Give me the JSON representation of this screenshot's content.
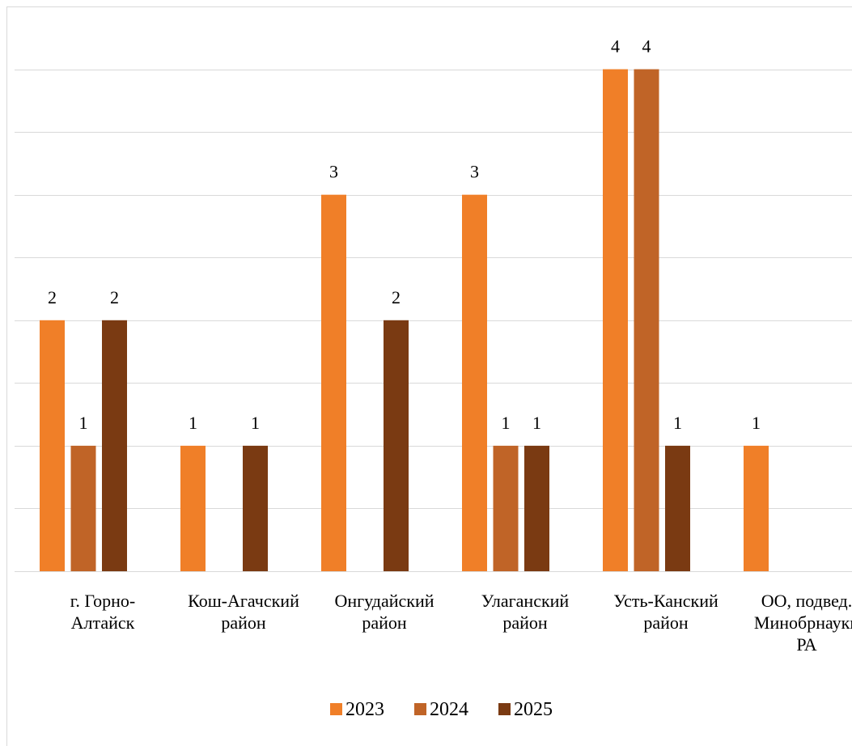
{
  "chart_data": {
    "type": "bar",
    "categories": [
      [
        "г. Горно-",
        "Алтайск"
      ],
      [
        "Кош-Агачский",
        "район"
      ],
      [
        "Онгудайский",
        "район"
      ],
      [
        "Улаганский",
        "район"
      ],
      [
        "Усть-Канский",
        "район"
      ],
      [
        "ОО, подвед.",
        "Минобрнауки",
        "РА"
      ]
    ],
    "series": [
      {
        "name": "2023",
        "color": "#F07F28",
        "values": [
          2,
          1,
          3,
          3,
          4,
          1
        ]
      },
      {
        "name": "2024",
        "color": "#C06427",
        "values": [
          1,
          0,
          0,
          1,
          4,
          0
        ]
      },
      {
        "name": "2025",
        "color": "#7A3A12",
        "values": [
          2,
          1,
          2,
          1,
          1,
          0
        ]
      }
    ],
    "ylim": [
      0,
      4.5
    ],
    "grid_step": 0.5,
    "grid": true,
    "legend": "bottom",
    "data_labels": true,
    "title": "",
    "xlabel": "",
    "ylabel": ""
  }
}
